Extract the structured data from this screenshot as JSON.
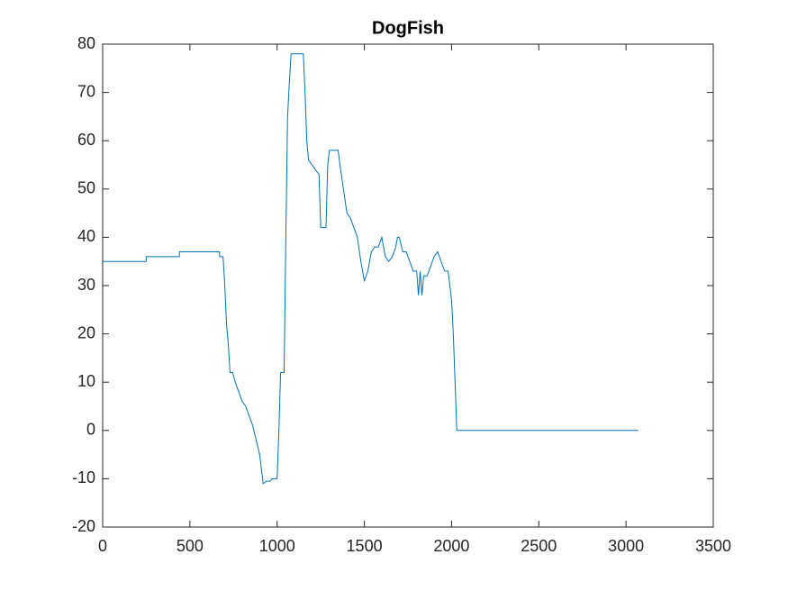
{
  "chart_data": {
    "type": "line",
    "title": "DogFish",
    "color": "#0072bd",
    "x": [
      0,
      250,
      250,
      440,
      440,
      670,
      670,
      690,
      700,
      710,
      720,
      730,
      745,
      760,
      780,
      800,
      820,
      840,
      860,
      880,
      900,
      920,
      940,
      960,
      970,
      1000,
      1010,
      1020,
      1040,
      1050,
      1060,
      1070,
      1080,
      1150,
      1160,
      1170,
      1180,
      1200,
      1220,
      1240,
      1250,
      1280,
      1290,
      1300,
      1350,
      1360,
      1380,
      1400,
      1420,
      1440,
      1460,
      1480,
      1500,
      1520,
      1540,
      1560,
      1580,
      1600,
      1620,
      1640,
      1660,
      1680,
      1690,
      1700,
      1720,
      1740,
      1760,
      1780,
      1800,
      1810,
      1820,
      1830,
      1840,
      1860,
      1880,
      1900,
      1920,
      1940,
      1960,
      1980,
      2000,
      2010,
      2020,
      2030,
      2040,
      3070
    ],
    "values": [
      35,
      35,
      36,
      36,
      37,
      37,
      36,
      36,
      30,
      22,
      18,
      12,
      12,
      10,
      8,
      6,
      5,
      3,
      1,
      -2,
      -5,
      -11,
      -10.5,
      -10.5,
      -10,
      -10,
      0,
      12,
      12,
      40,
      65,
      72,
      78,
      78,
      70,
      60,
      56,
      55,
      54,
      53,
      42,
      42,
      55,
      58,
      58,
      55,
      50,
      45,
      44,
      42,
      40,
      35,
      31,
      33,
      37,
      38,
      38,
      40,
      36,
      35,
      36,
      38,
      40,
      40,
      37,
      37,
      35,
      33,
      33,
      28,
      33,
      28,
      32,
      32,
      34,
      36,
      37,
      35,
      33,
      33,
      27,
      20,
      10,
      0,
      0,
      0
    ],
    "xlim": [
      0,
      3500
    ],
    "xticks": [
      0,
      500,
      1000,
      1500,
      2000,
      2500,
      3000,
      3500
    ],
    "ylim": [
      -20,
      80
    ],
    "yticks": [
      -20,
      -10,
      0,
      10,
      20,
      30,
      40,
      50,
      60,
      70,
      80
    ]
  }
}
